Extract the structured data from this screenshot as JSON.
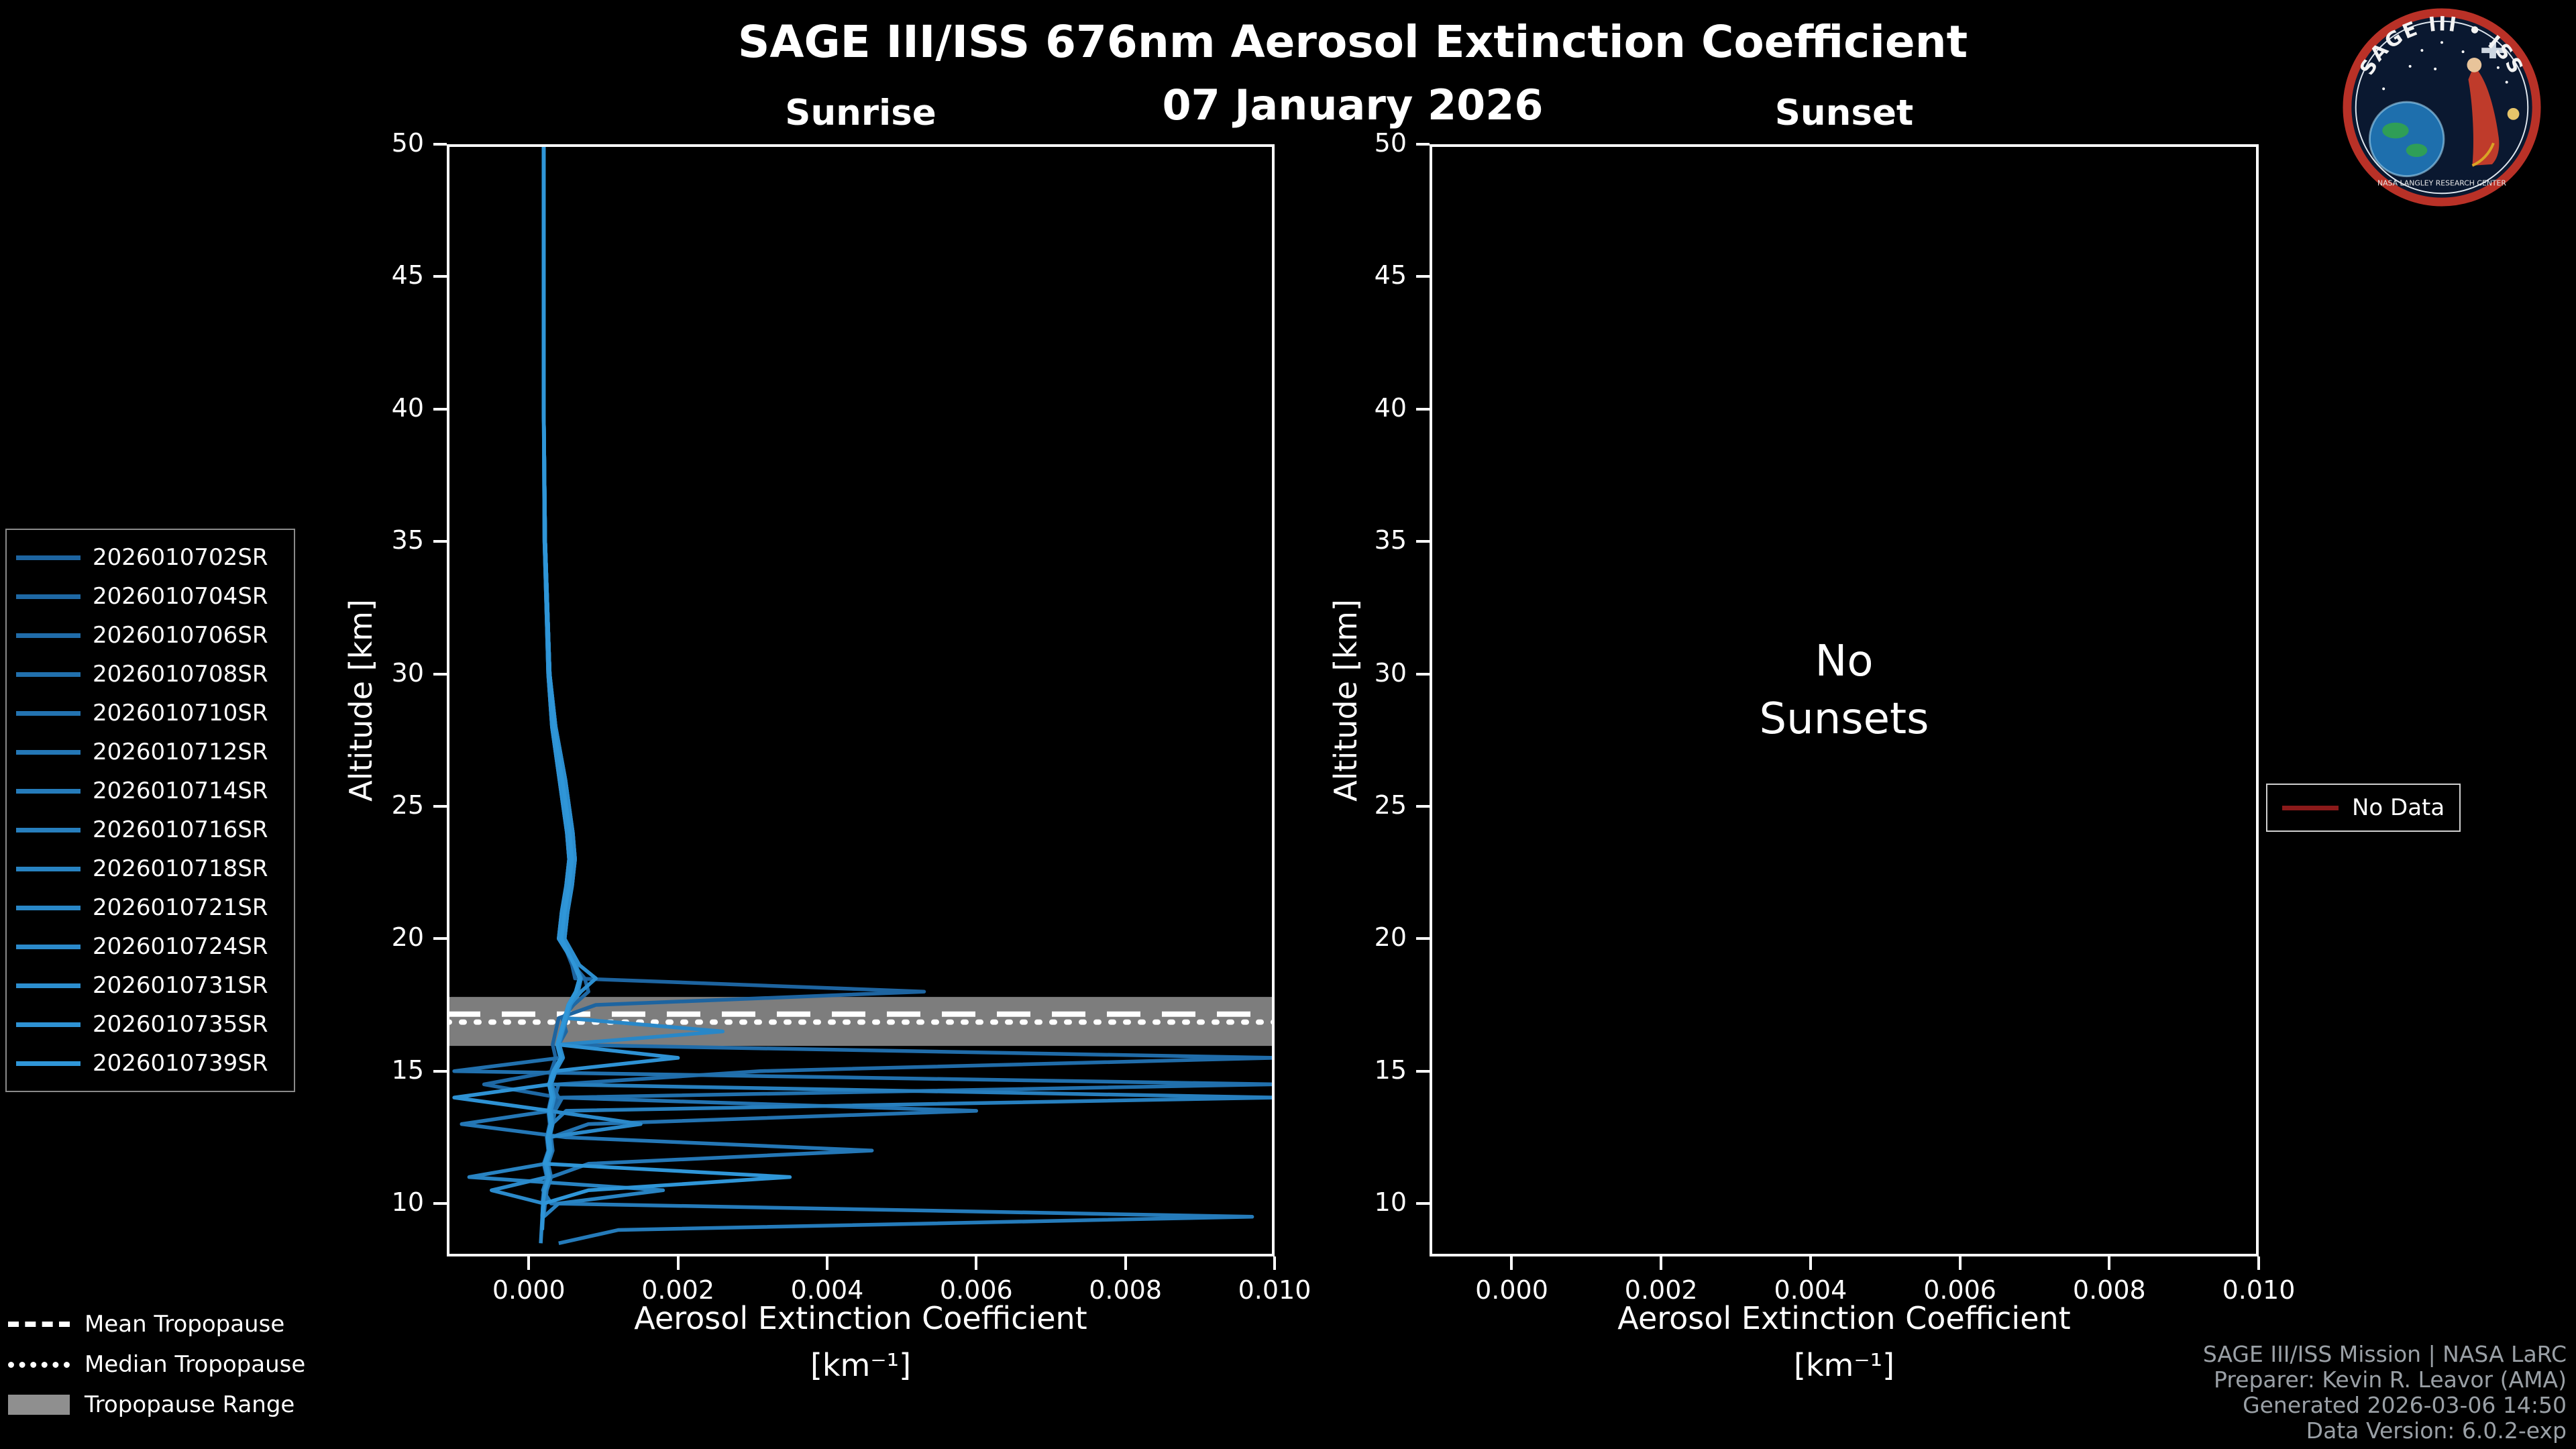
{
  "header": {
    "title": "SAGE III/ISS 676nm Aerosol Extinction Coefficient",
    "date": "07 January 2026"
  },
  "logo": {
    "top_text": "SAGE III • ISS",
    "bottom_text": "NASA LANGLEY RESEARCH CENTER"
  },
  "footer": {
    "lines": [
      "SAGE III/ISS Mission | NASA LaRC",
      "Preparer: Kevin R. Leavor (AMA)",
      "Generated 2026-03-06 14:50",
      "Data Version: 6.0.2-exp"
    ]
  },
  "legends": {
    "tropopause": [
      {
        "label": "Mean Tropopause",
        "style": "dashed"
      },
      {
        "label": "Median Tropopause",
        "style": "dotted"
      },
      {
        "label": "Tropopause Range",
        "style": "band"
      }
    ],
    "no_data": {
      "label": "No Data",
      "color": "#8b1a1a"
    }
  },
  "style": {
    "background": "#000000",
    "foreground": "#ffffff",
    "series_color_start": "#1d64a0",
    "series_color_end": "#2f96d8",
    "tropopause_band_color": "#7d7d7d",
    "footer_color": "#9aa0a6"
  },
  "chart_data": [
    {
      "type": "line",
      "panel": "sunrise",
      "title": "Sunrise",
      "xlabel": "Aerosol Extinction Coefficient",
      "xlabel_units": "[km⁻¹]",
      "ylabel": "Altitude [km]",
      "xlim": [
        -0.0011,
        0.01
      ],
      "ylim": [
        8,
        50
      ],
      "xticks": [
        0,
        0.002,
        0.004,
        0.006,
        0.008,
        0.01
      ],
      "xtick_labels": [
        "0.000",
        "0.002",
        "0.004",
        "0.006",
        "0.008",
        "0.010"
      ],
      "yticks": [
        10,
        15,
        20,
        25,
        30,
        35,
        40,
        45,
        50
      ],
      "grid": false,
      "legend_position": "outside-left",
      "tropopause": {
        "mean_km": 17.15,
        "median_km": 16.85,
        "range_km": [
          15.95,
          17.8
        ]
      },
      "altitude_km": [
        50,
        45,
        40,
        35,
        30,
        28,
        26,
        25,
        24,
        23,
        22,
        21,
        20,
        19,
        18.5,
        18,
        17.5,
        17,
        16.5,
        16,
        15.5,
        15,
        14.5,
        14,
        13.5,
        13,
        12.5,
        12,
        11.5,
        11,
        10.5,
        10,
        9.5,
        9,
        8.5
      ],
      "series": [
        {
          "name": "2026010702SR",
          "values": [
            0.0002,
            0.0002,
            0.0002,
            0.00022,
            0.00028,
            0.00034,
            0.00045,
            0.0005,
            0.00055,
            0.00058,
            0.00054,
            0.00048,
            0.00044,
            0.00058,
            0.00062,
            0.0053,
            0.0009,
            0.0004,
            0.00036,
            0.00032,
            0.00036,
            0.0003,
            0.00028,
            0.0003,
            0.00026,
            0.00028,
            0.00024,
            0.00026,
            0.0002,
            0.00024,
            0.0002,
            0.00018,
            null,
            null,
            null
          ]
        },
        {
          "name": "2026010704SR",
          "values": [
            0.0002,
            0.0002,
            0.0002,
            0.00022,
            0.00028,
            0.00034,
            0.00045,
            0.0005,
            0.00055,
            0.00058,
            0.00054,
            0.00048,
            0.00044,
            0.0006,
            0.00075,
            0.0008,
            0.0006,
            0.00045,
            0.0005,
            0.0004,
            0.00045,
            0.00035,
            -0.0006,
            0.0004,
            0.0003,
            0.00032,
            0.00026,
            0.00028,
            0.00022,
            0.00026,
            0.0002,
            0.0002,
            0.00018,
            null,
            null
          ]
        },
        {
          "name": "2026010706SR",
          "values": [
            0.0002,
            0.0002,
            0.0002,
            0.00022,
            0.00028,
            0.00036,
            0.00049,
            0.00054,
            0.00059,
            0.00062,
            0.00058,
            0.00052,
            0.00048,
            0.00062,
            0.0007,
            0.00065,
            0.00055,
            0.0005,
            0.00045,
            0.0004,
            0.01,
            0.0031,
            0.0004,
            0.00035,
            0.0003,
            0.0003,
            0.00026,
            0.00028,
            0.00024,
            0.00026,
            0.00022,
            null,
            null,
            null,
            null
          ]
        },
        {
          "name": "2026010708SR",
          "values": [
            0.0002,
            0.0002,
            0.0002,
            0.00022,
            0.00028,
            0.00034,
            0.00045,
            0.0005,
            0.00055,
            0.00058,
            0.00054,
            0.00048,
            0.00044,
            0.00061,
            0.00068,
            0.00063,
            0.00053,
            0.00048,
            0.00043,
            0.00038,
            0.00042,
            -0.001,
            0.01,
            0.00045,
            0.00035,
            0.00032,
            0.00028,
            0.0003,
            0.00024,
            0.00028,
            0.00022,
            0.0002,
            null,
            null,
            null
          ]
        },
        {
          "name": "2026010710SR",
          "values": [
            0.0002,
            0.0002,
            0.0002,
            0.00021,
            0.00026,
            0.00031,
            0.00041,
            0.00046,
            0.00051,
            0.00054,
            0.0005,
            0.00044,
            0.0004,
            0.00063,
            0.0007,
            0.00066,
            0.00056,
            0.00051,
            0.00046,
            0.00041,
            0.00046,
            0.00036,
            0.0003,
            0.0004,
            0.006,
            0.0008,
            0.0003,
            0.00032,
            0.00026,
            0.0003,
            0.00024,
            0.00022,
            0.0002,
            null,
            null
          ]
        },
        {
          "name": "2026010712SR",
          "values": [
            0.0002,
            0.0002,
            0.0002,
            0.00022,
            0.00028,
            0.00036,
            0.00049,
            0.00054,
            0.00059,
            0.00062,
            0.00058,
            0.00052,
            0.00048,
            0.00062,
            0.00069,
            0.00064,
            0.00054,
            0.00049,
            0.00044,
            0.00039,
            0.00044,
            0.00034,
            0.00028,
            0.00032,
            0.0003,
            -0.0009,
            0.0005,
            0.0046,
            0.0008,
            0.0003,
            0.00024,
            0.00022,
            null,
            null,
            null
          ]
        },
        {
          "name": "2026010714SR",
          "values": [
            0.0002,
            0.0002,
            0.0002,
            0.00022,
            0.00028,
            0.00034,
            0.00045,
            0.0005,
            0.00055,
            0.00058,
            0.00054,
            0.00048,
            0.00044,
            0.00061,
            0.00068,
            0.00063,
            0.00053,
            0.00048,
            0.00043,
            0.00038,
            0.00043,
            0.00033,
            0.00027,
            0.00031,
            0.00027,
            0.00029,
            0.00025,
            0.00027,
            0.00021,
            0.00025,
            0.00019,
            0.0003,
            0.0097,
            0.0012,
            0.0004
          ]
        },
        {
          "name": "2026010716SR",
          "values": [
            0.0002,
            0.0002,
            0.0002,
            0.00022,
            0.00028,
            0.00034,
            0.00045,
            0.0005,
            0.00055,
            0.00058,
            0.00054,
            0.00048,
            0.00044,
            0.00063,
            0.0007,
            0.00065,
            0.00055,
            0.0005,
            0.00045,
            0.0004,
            0.00045,
            0.00035,
            0.00029,
            0.01,
            0.0005,
            0.00031,
            0.00027,
            0.00029,
            0.00023,
            0.00027,
            0.00021,
            null,
            null,
            null,
            null
          ]
        },
        {
          "name": "2026010718SR",
          "values": [
            0.0002,
            0.0002,
            0.0002,
            0.00022,
            0.00028,
            0.00036,
            0.00049,
            0.00054,
            0.00059,
            0.00062,
            0.00058,
            0.00052,
            0.00048,
            0.00062,
            0.00069,
            0.00064,
            0.00054,
            0.00049,
            0.00044,
            0.00039,
            0.00044,
            0.00034,
            0.00028,
            0.00032,
            0.00028,
            0.0003,
            0.00026,
            0.00028,
            0.00022,
            -0.0008,
            0.0018,
            0.0004,
            0.0002,
            null,
            null
          ]
        },
        {
          "name": "2026010721SR",
          "values": [
            0.0002,
            0.0002,
            0.0002,
            0.00021,
            0.00026,
            0.00031,
            0.00041,
            0.00046,
            0.00051,
            0.00054,
            0.0005,
            0.00044,
            0.0004,
            0.00063,
            0.0007,
            0.00066,
            0.00056,
            0.00051,
            0.0026,
            0.00041,
            0.00046,
            0.00036,
            0.0003,
            0.00034,
            0.0003,
            0.00032,
            0.00028,
            0.0003,
            0.00024,
            0.00028,
            0.00022,
            0.00019,
            0.00018,
            0.00018,
            null
          ]
        },
        {
          "name": "2026010724SR",
          "values": [
            0.0002,
            0.0002,
            0.0002,
            0.00022,
            0.00028,
            0.00034,
            0.00045,
            0.0005,
            0.00055,
            0.00058,
            0.00054,
            0.00048,
            0.00044,
            0.00061,
            0.00068,
            0.00063,
            0.00053,
            0.00048,
            0.00043,
            0.00038,
            0.00043,
            0.00033,
            0.00027,
            0.00031,
            0.00027,
            0.0015,
            0.00025,
            0.00027,
            0.00021,
            0.00025,
            -0.0005,
            0.0002,
            0.00018,
            0.00017,
            0.00016
          ]
        },
        {
          "name": "2026010731SR",
          "values": [
            0.0002,
            0.0002,
            0.0002,
            0.00022,
            0.00028,
            0.00036,
            0.00049,
            0.00054,
            0.00059,
            0.00062,
            0.00058,
            0.00052,
            0.00048,
            0.00068,
            0.0009,
            0.0007,
            0.00055,
            0.0005,
            0.00045,
            0.0004,
            0.00045,
            0.00035,
            0.00029,
            0.00033,
            0.00029,
            0.00031,
            0.00027,
            0.00029,
            null,
            null,
            null,
            null,
            null,
            null,
            null
          ]
        },
        {
          "name": "2026010735SR",
          "values": [
            0.0002,
            0.0002,
            0.0002,
            0.00021,
            0.00026,
            0.00031,
            0.00041,
            0.00046,
            0.00051,
            0.00054,
            0.0005,
            0.00044,
            0.0004,
            0.00062,
            0.00069,
            0.00064,
            0.00054,
            0.00049,
            0.00044,
            0.00039,
            0.002,
            0.00035,
            0.00029,
            -0.001,
            0.00029,
            0.00031,
            0.00027,
            0.00029,
            0.00023,
            0.00027,
            0.00021,
            0.00019,
            0.00018,
            null,
            null
          ]
        },
        {
          "name": "2026010739SR",
          "values": [
            0.0002,
            0.0002,
            0.0002,
            0.00022,
            0.00028,
            0.00034,
            0.00045,
            0.0005,
            0.00055,
            0.00058,
            0.00054,
            0.00048,
            0.00044,
            0.00061,
            0.00068,
            0.00063,
            0.00053,
            0.00048,
            0.00043,
            0.00038,
            0.00043,
            0.00033,
            0.00027,
            0.00031,
            0.00027,
            0.00029,
            0.00025,
            0.00027,
            0.00021,
            0.0035,
            0.0008,
            0.0002,
            0.00019,
            0.00018,
            null
          ]
        }
      ]
    },
    {
      "type": "line",
      "panel": "sunset",
      "title": "Sunset",
      "xlabel": "Aerosol Extinction Coefficient",
      "xlabel_units": "[km⁻¹]",
      "ylabel": "Altitude [km]",
      "xlim": [
        -0.0011,
        0.01
      ],
      "ylim": [
        8,
        50
      ],
      "xticks": [
        0,
        0.002,
        0.004,
        0.006,
        0.008,
        0.01
      ],
      "xtick_labels": [
        "0.000",
        "0.002",
        "0.004",
        "0.006",
        "0.008",
        "0.010"
      ],
      "yticks": [
        10,
        15,
        20,
        25,
        30,
        35,
        40,
        45,
        50
      ],
      "grid": false,
      "annotation": "No\nSunsets",
      "series": []
    }
  ]
}
